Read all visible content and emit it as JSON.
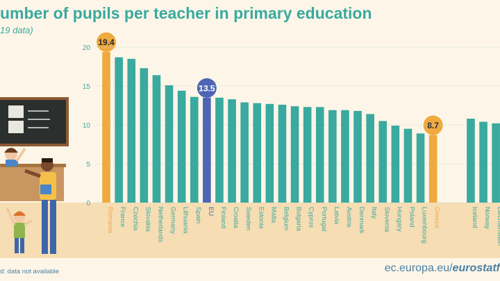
{
  "title": "umber of pupils per teacher in primary education",
  "subtitle": "19 data)",
  "footnote": "d: data not available",
  "source": {
    "prefix": "ec.europa.eu/",
    "brand": "eurostatf"
  },
  "colors": {
    "bar": "#3aa99f",
    "highlight": "#f0a93e",
    "eu": "#4d65b4",
    "label": "#ffffff",
    "title": "#3aa99f"
  },
  "chart_data": {
    "type": "bar",
    "ylim": [
      0,
      20
    ],
    "yticks": [
      0,
      5,
      10,
      15,
      20
    ],
    "grid": true,
    "categories": [
      "Romania",
      "France",
      "Czechia",
      "Slovakia",
      "Netherlands",
      "Germany",
      "Lithuania",
      "Spain",
      "EU",
      "Finland",
      "Croatia",
      "Sweden",
      "Estonia",
      "Malta",
      "Belgium",
      "Bulgaria",
      "Cyprus",
      "Portugal",
      "Latvia",
      "Austria",
      "Denmark",
      "Italy",
      "Slovenia",
      "Hungary",
      "Poland",
      "Luxembourg",
      "Greece",
      "",
      "",
      "Iceland",
      "Norway",
      "Liechtenstein"
    ],
    "values": [
      19.4,
      18.7,
      18.5,
      17.3,
      16.4,
      15.1,
      14.4,
      13.6,
      13.5,
      13.5,
      13.3,
      12.9,
      12.8,
      12.7,
      12.6,
      12.4,
      12.3,
      12.3,
      11.9,
      11.9,
      11.8,
      11.4,
      10.5,
      9.9,
      9.5,
      8.9,
      8.7,
      null,
      null,
      10.8,
      10.4,
      10.2
    ],
    "highlighted": [
      "Romania",
      "Greece"
    ],
    "eu_category": "EU",
    "data_labels": {
      "Romania": "19.4",
      "EU": "13.5",
      "Greece": "8.7"
    }
  }
}
